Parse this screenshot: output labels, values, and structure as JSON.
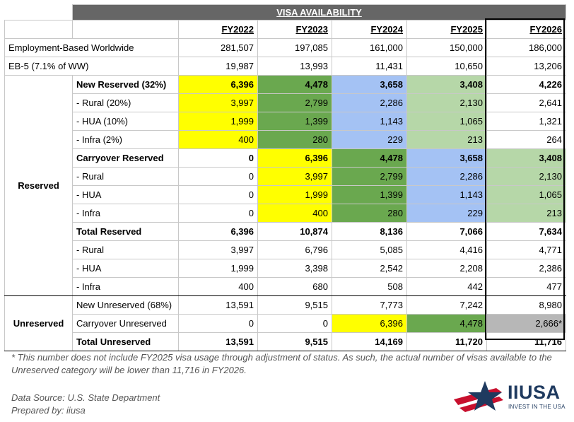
{
  "table": {
    "title": "VISA AVAILABILITY",
    "years": [
      "FY2022",
      "FY2023",
      "FY2024",
      "FY2025",
      "FY2026"
    ],
    "worldwide": {
      "label": "Employment-Based Worldwide",
      "values": [
        "281,507",
        "197,085",
        "161,000",
        "150,000",
        "186,000"
      ]
    },
    "eb5": {
      "label": "EB-5 (7.1% of WW)",
      "values": [
        "19,987",
        "13,993",
        "11,431",
        "10,650",
        "13,206"
      ]
    },
    "reserved": {
      "group_label": "Reserved",
      "new": {
        "label": "New Reserved (32%)",
        "values": [
          "6,396",
          "4,478",
          "3,658",
          "3,408",
          "4,226"
        ],
        "rural": {
          "label": "- Rural (20%)",
          "values": [
            "3,997",
            "2,799",
            "2,286",
            "2,130",
            "2,641"
          ]
        },
        "hua": {
          "label": "- HUA (10%)",
          "values": [
            "1,999",
            "1,399",
            "1,143",
            "1,065",
            "1,321"
          ]
        },
        "infra": {
          "label": "- Infra (2%)",
          "values": [
            "400",
            "280",
            "229",
            "213",
            "264"
          ]
        }
      },
      "carryover": {
        "label": "Carryover Reserved",
        "values": [
          "0",
          "6,396",
          "4,478",
          "3,658",
          "3,408"
        ],
        "rural": {
          "label": "- Rural",
          "values": [
            "0",
            "3,997",
            "2,799",
            "2,286",
            "2,130"
          ]
        },
        "hua": {
          "label": "- HUA",
          "values": [
            "0",
            "1,999",
            "1,399",
            "1,143",
            "1,065"
          ]
        },
        "infra": {
          "label": "- Infra",
          "values": [
            "0",
            "400",
            "280",
            "229",
            "213"
          ]
        }
      },
      "total": {
        "label": "Total Reserved",
        "values": [
          "6,396",
          "10,874",
          "8,136",
          "7,066",
          "7,634"
        ],
        "rural": {
          "label": "- Rural",
          "values": [
            "3,997",
            "6,796",
            "5,085",
            "4,416",
            "4,771"
          ]
        },
        "hua": {
          "label": "- HUA",
          "values": [
            "1,999",
            "3,398",
            "2,542",
            "2,208",
            "2,386"
          ]
        },
        "infra": {
          "label": "- Infra",
          "values": [
            "400",
            "680",
            "508",
            "442",
            "477"
          ]
        }
      }
    },
    "unreserved": {
      "group_label": "Unreserved",
      "new": {
        "label": "New Unreserved (68%)",
        "values": [
          "13,591",
          "9,515",
          "7,773",
          "7,242",
          "8,980"
        ]
      },
      "carryover": {
        "label": "Carryover Unreserved",
        "values": [
          "0",
          "0",
          "6,396",
          "4,478",
          "2,666*"
        ]
      },
      "total": {
        "label": "Total Unreserved",
        "values": [
          "13,591",
          "9,515",
          "14,169",
          "11,720",
          "11,716"
        ]
      }
    },
    "fill_colors": {
      "yellow": "#ffff00",
      "dark_green": "#6aa84f",
      "blue": "#a4c2f4",
      "light_green": "#b6d7a8",
      "gray": "#b7b7b7"
    }
  },
  "footnote": "* This number does not include FY2025 visa usage through adjustment of status. As such, the actual number of visas available to the Unreserved category will be lower than 11,716 in FY2026.",
  "data_source": "Data Source: U.S. State Department",
  "prepared_by": "Prepared by: iiusa",
  "logo": {
    "wordmark": "IIUSA",
    "tagline": "INVEST IN THE USA",
    "star_color": "#1f3a5f",
    "stripe_color": "#c8102e"
  }
}
